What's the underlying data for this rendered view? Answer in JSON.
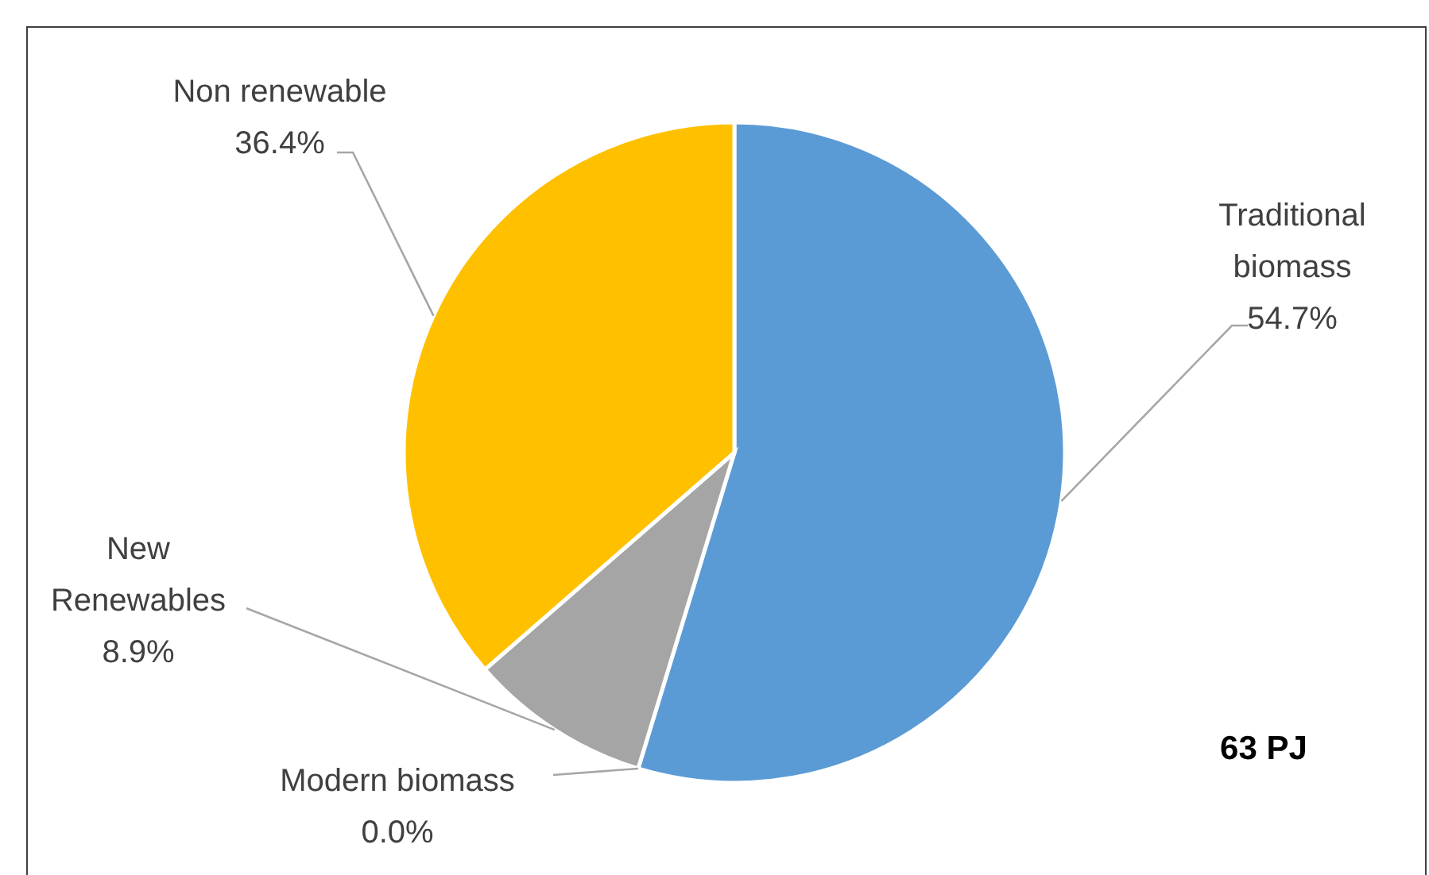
{
  "chart_data": {
    "type": "pie",
    "categories": [
      "Traditional biomass",
      "Modern biomass",
      "New Renewables",
      "Non renewable"
    ],
    "values": [
      54.7,
      0.0,
      8.9,
      36.4
    ],
    "colors": [
      "#5b9bd5",
      null,
      "#a5a5a5",
      "#ffc000"
    ],
    "value_labels": [
      "54.7%",
      "0.0%",
      "8.9%",
      "36.4%"
    ],
    "annotations": [
      "63 PJ"
    ]
  }
}
